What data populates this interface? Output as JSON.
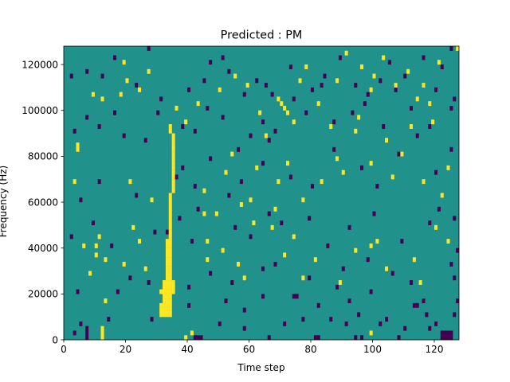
{
  "chart_data": {
    "type": "heatmap",
    "title": "Predicted : PM",
    "xlabel": "Time step",
    "ylabel": "Frequency (Hz)",
    "xlim": [
      0,
      128
    ],
    "ylim": [
      0,
      128000
    ],
    "xticks": [
      0,
      20,
      40,
      60,
      80,
      100,
      120
    ],
    "yticks": [
      0,
      20000,
      40000,
      60000,
      80000,
      100000,
      120000
    ],
    "xtick_labels": [
      "0",
      "20",
      "40",
      "60",
      "80",
      "100",
      "120"
    ],
    "ytick_labels": [
      "0",
      "20000",
      "40000",
      "60000",
      "80000",
      "100000",
      "120000"
    ],
    "rows": 64,
    "cols": 128,
    "row_height_hz": 2000,
    "background_value": 0,
    "value_colors": {
      "-1": "#440154",
      "0": "#21918c",
      "1": "#fde725"
    },
    "yellow_cells": [
      [
        12,
        0
      ],
      [
        12,
        1
      ],
      [
        12,
        2
      ],
      [
        39,
        0
      ],
      [
        41,
        1
      ],
      [
        99,
        1
      ],
      [
        31,
        5
      ],
      [
        32,
        5
      ],
      [
        33,
        5
      ],
      [
        34,
        5
      ],
      [
        31,
        6
      ],
      [
        32,
        6
      ],
      [
        33,
        6
      ],
      [
        34,
        6
      ],
      [
        31,
        7
      ],
      [
        32,
        7
      ],
      [
        33,
        7
      ],
      [
        34,
        7
      ],
      [
        32,
        8
      ],
      [
        33,
        8
      ],
      [
        34,
        8
      ],
      [
        32,
        9
      ],
      [
        33,
        9
      ],
      [
        34,
        9
      ],
      [
        31,
        10
      ],
      [
        32,
        10
      ],
      [
        33,
        10
      ],
      [
        34,
        10
      ],
      [
        35,
        10
      ],
      [
        32,
        11
      ],
      [
        33,
        11
      ],
      [
        34,
        11
      ],
      [
        35,
        11
      ],
      [
        32,
        12
      ],
      [
        33,
        12
      ],
      [
        34,
        12
      ],
      [
        35,
        12
      ],
      [
        33,
        13
      ],
      [
        34,
        13
      ],
      [
        33,
        14
      ],
      [
        34,
        14
      ],
      [
        33,
        15
      ],
      [
        34,
        15
      ],
      [
        33,
        16
      ],
      [
        34,
        16
      ],
      [
        33,
        17
      ],
      [
        34,
        17
      ],
      [
        33,
        18
      ],
      [
        34,
        18
      ],
      [
        33,
        19
      ],
      [
        34,
        19
      ],
      [
        33,
        20
      ],
      [
        34,
        20
      ],
      [
        33,
        21
      ],
      [
        34,
        21
      ],
      [
        34,
        22
      ],
      [
        34,
        23
      ],
      [
        34,
        24
      ],
      [
        34,
        25
      ],
      [
        34,
        26
      ],
      [
        34,
        27
      ],
      [
        34,
        28
      ],
      [
        34,
        29
      ],
      [
        34,
        30
      ],
      [
        34,
        31
      ],
      [
        35,
        32
      ],
      [
        35,
        33
      ],
      [
        35,
        34
      ],
      [
        35,
        35
      ],
      [
        35,
        36
      ],
      [
        35,
        37
      ],
      [
        35,
        38
      ],
      [
        35,
        39
      ],
      [
        35,
        40
      ],
      [
        35,
        41
      ],
      [
        35,
        42
      ],
      [
        35,
        43
      ],
      [
        35,
        44
      ],
      [
        34,
        45
      ],
      [
        34,
        46
      ],
      [
        13,
        17
      ],
      [
        19,
        16
      ],
      [
        26,
        15
      ],
      [
        6,
        20
      ],
      [
        10,
        18
      ],
      [
        11,
        22
      ],
      [
        13,
        8
      ],
      [
        8,
        14
      ],
      [
        10,
        20
      ],
      [
        21,
        34
      ],
      [
        22,
        24
      ],
      [
        24,
        21
      ],
      [
        28,
        30
      ],
      [
        45,
        27
      ],
      [
        46,
        21
      ],
      [
        51,
        19
      ],
      [
        56,
        16
      ],
      [
        58,
        13
      ],
      [
        57,
        29
      ],
      [
        61,
        25
      ],
      [
        67,
        24
      ],
      [
        71,
        18
      ],
      [
        74,
        22
      ],
      [
        77,
        13
      ],
      [
        81,
        17
      ],
      [
        89,
        12
      ],
      [
        94,
        19
      ],
      [
        99,
        20
      ],
      [
        101,
        21
      ],
      [
        104,
        15
      ],
      [
        113,
        17
      ],
      [
        115,
        12
      ],
      [
        120,
        24
      ],
      [
        124,
        21
      ],
      [
        45,
        32
      ],
      [
        46,
        17
      ],
      [
        49,
        27
      ],
      [
        52,
        36
      ],
      [
        54,
        40
      ],
      [
        60,
        30
      ],
      [
        62,
        37
      ],
      [
        65,
        44
      ],
      [
        68,
        28
      ],
      [
        69,
        34
      ],
      [
        72,
        38
      ],
      [
        74,
        47
      ],
      [
        77,
        30
      ],
      [
        83,
        34
      ],
      [
        86,
        46
      ],
      [
        88,
        39
      ],
      [
        90,
        36
      ],
      [
        94,
        45
      ],
      [
        95,
        48
      ],
      [
        99,
        38
      ],
      [
        104,
        43
      ],
      [
        106,
        35
      ],
      [
        109,
        40
      ],
      [
        112,
        46
      ],
      [
        116,
        34
      ],
      [
        122,
        31
      ],
      [
        124,
        37
      ],
      [
        3,
        34
      ],
      [
        4,
        41
      ],
      [
        4,
        42
      ],
      [
        12,
        52
      ],
      [
        9,
        53
      ],
      [
        18,
        53
      ],
      [
        19,
        60
      ],
      [
        20,
        56
      ],
      [
        24,
        54
      ],
      [
        27,
        58
      ],
      [
        36,
        50
      ],
      [
        39,
        47
      ],
      [
        43,
        51
      ],
      [
        50,
        54
      ],
      [
        55,
        57
      ],
      [
        59,
        55
      ],
      [
        63,
        49
      ],
      [
        69,
        52
      ],
      [
        70,
        51
      ],
      [
        71,
        50
      ],
      [
        72,
        49
      ],
      [
        76,
        56
      ],
      [
        78,
        59
      ],
      [
        82,
        51
      ],
      [
        88,
        56
      ],
      [
        91,
        62
      ],
      [
        96,
        59
      ],
      [
        99,
        54
      ],
      [
        100,
        57
      ],
      [
        103,
        61
      ],
      [
        107,
        55
      ],
      [
        111,
        58
      ],
      [
        114,
        52
      ],
      [
        116,
        55
      ],
      [
        118,
        51
      ],
      [
        121,
        60
      ],
      [
        127,
        63
      ],
      [
        119,
        47
      ]
    ],
    "purple_cells": [
      [
        7,
        0
      ],
      [
        7,
        1
      ],
      [
        7,
        2
      ],
      [
        42,
        0
      ],
      [
        43,
        0
      ],
      [
        44,
        0
      ],
      [
        66,
        0
      ],
      [
        81,
        0
      ],
      [
        82,
        0
      ],
      [
        94,
        0
      ],
      [
        96,
        0
      ],
      [
        108,
        0
      ],
      [
        122,
        0
      ],
      [
        123,
        0
      ],
      [
        124,
        0
      ],
      [
        125,
        0
      ],
      [
        122,
        1
      ],
      [
        123,
        1
      ],
      [
        124,
        1
      ],
      [
        125,
        1
      ],
      [
        118,
        2
      ],
      [
        120,
        3
      ],
      [
        3,
        1
      ],
      [
        5,
        3
      ],
      [
        14,
        4
      ],
      [
        28,
        4
      ],
      [
        50,
        3
      ],
      [
        58,
        2
      ],
      [
        71,
        3
      ],
      [
        77,
        4
      ],
      [
        86,
        4
      ],
      [
        91,
        3
      ],
      [
        95,
        5
      ],
      [
        102,
        3
      ],
      [
        104,
        4
      ],
      [
        110,
        2
      ],
      [
        117,
        5
      ],
      [
        126,
        5
      ],
      [
        40,
        7
      ],
      [
        52,
        8
      ],
      [
        58,
        6
      ],
      [
        64,
        9
      ],
      [
        74,
        9
      ],
      [
        75,
        9
      ],
      [
        82,
        7
      ],
      [
        88,
        11
      ],
      [
        92,
        8
      ],
      [
        99,
        10
      ],
      [
        113,
        7
      ],
      [
        114,
        7
      ],
      [
        116,
        8
      ],
      [
        127,
        8
      ],
      [
        4,
        10
      ],
      [
        17,
        10
      ],
      [
        21,
        13
      ],
      [
        27,
        12
      ],
      [
        40,
        11
      ],
      [
        47,
        14
      ],
      [
        54,
        12
      ],
      [
        64,
        15
      ],
      [
        68,
        16
      ],
      [
        79,
        13
      ],
      [
        90,
        15
      ],
      [
        98,
        17
      ],
      [
        106,
        14
      ],
      [
        112,
        12
      ],
      [
        125,
        16
      ],
      [
        126,
        13
      ],
      [
        127,
        19
      ],
      [
        2,
        22
      ],
      [
        9,
        25
      ],
      [
        15,
        20
      ],
      [
        29,
        23
      ],
      [
        33,
        23
      ],
      [
        37,
        26
      ],
      [
        41,
        21
      ],
      [
        43,
        28
      ],
      [
        55,
        24
      ],
      [
        60,
        22
      ],
      [
        66,
        27
      ],
      [
        70,
        25
      ],
      [
        79,
        26
      ],
      [
        85,
        20
      ],
      [
        92,
        24
      ],
      [
        100,
        27
      ],
      [
        109,
        21
      ],
      [
        118,
        25
      ],
      [
        121,
        28
      ],
      [
        126,
        26
      ],
      [
        5,
        30
      ],
      [
        11,
        34
      ],
      [
        23,
        31
      ],
      [
        36,
        35
      ],
      [
        38,
        37
      ],
      [
        42,
        33
      ],
      [
        47,
        39
      ],
      [
        53,
        31
      ],
      [
        56,
        41
      ],
      [
        57,
        34
      ],
      [
        64,
        38
      ],
      [
        66,
        43
      ],
      [
        73,
        35
      ],
      [
        80,
        33
      ],
      [
        87,
        41
      ],
      [
        96,
        37
      ],
      [
        101,
        33
      ],
      [
        108,
        40
      ],
      [
        114,
        44
      ],
      [
        120,
        36
      ],
      [
        125,
        41
      ],
      [
        3,
        45
      ],
      [
        7,
        48
      ],
      [
        11,
        46
      ],
      [
        19,
        44
      ],
      [
        26,
        43
      ],
      [
        30,
        49
      ],
      [
        38,
        46
      ],
      [
        42,
        45
      ],
      [
        46,
        50
      ],
      [
        51,
        48
      ],
      [
        58,
        53
      ],
      [
        60,
        44
      ],
      [
        64,
        47
      ],
      [
        68,
        45
      ],
      [
        74,
        52
      ],
      [
        78,
        49
      ],
      [
        83,
        55
      ],
      [
        87,
        47
      ],
      [
        93,
        49
      ],
      [
        97,
        51
      ],
      [
        103,
        46
      ],
      [
        107,
        54
      ],
      [
        112,
        50
      ],
      [
        118,
        46
      ],
      [
        125,
        50
      ],
      [
        126,
        52
      ],
      [
        2,
        57
      ],
      [
        7,
        58
      ],
      [
        12,
        57
      ],
      [
        16,
        61
      ],
      [
        23,
        55
      ],
      [
        31,
        52
      ],
      [
        40,
        54
      ],
      [
        45,
        56
      ],
      [
        51,
        61
      ],
      [
        53,
        58
      ],
      [
        62,
        56
      ],
      [
        65,
        55
      ],
      [
        67,
        53
      ],
      [
        73,
        59
      ],
      [
        80,
        54
      ],
      [
        84,
        57
      ],
      [
        89,
        61
      ],
      [
        94,
        55
      ],
      [
        98,
        53
      ],
      [
        102,
        56
      ],
      [
        105,
        60
      ],
      [
        110,
        57
      ],
      [
        116,
        61
      ],
      [
        120,
        54
      ],
      [
        122,
        59
      ],
      [
        125,
        63
      ],
      [
        27,
        63
      ],
      [
        47,
        60
      ],
      [
        16,
        49
      ]
    ]
  }
}
